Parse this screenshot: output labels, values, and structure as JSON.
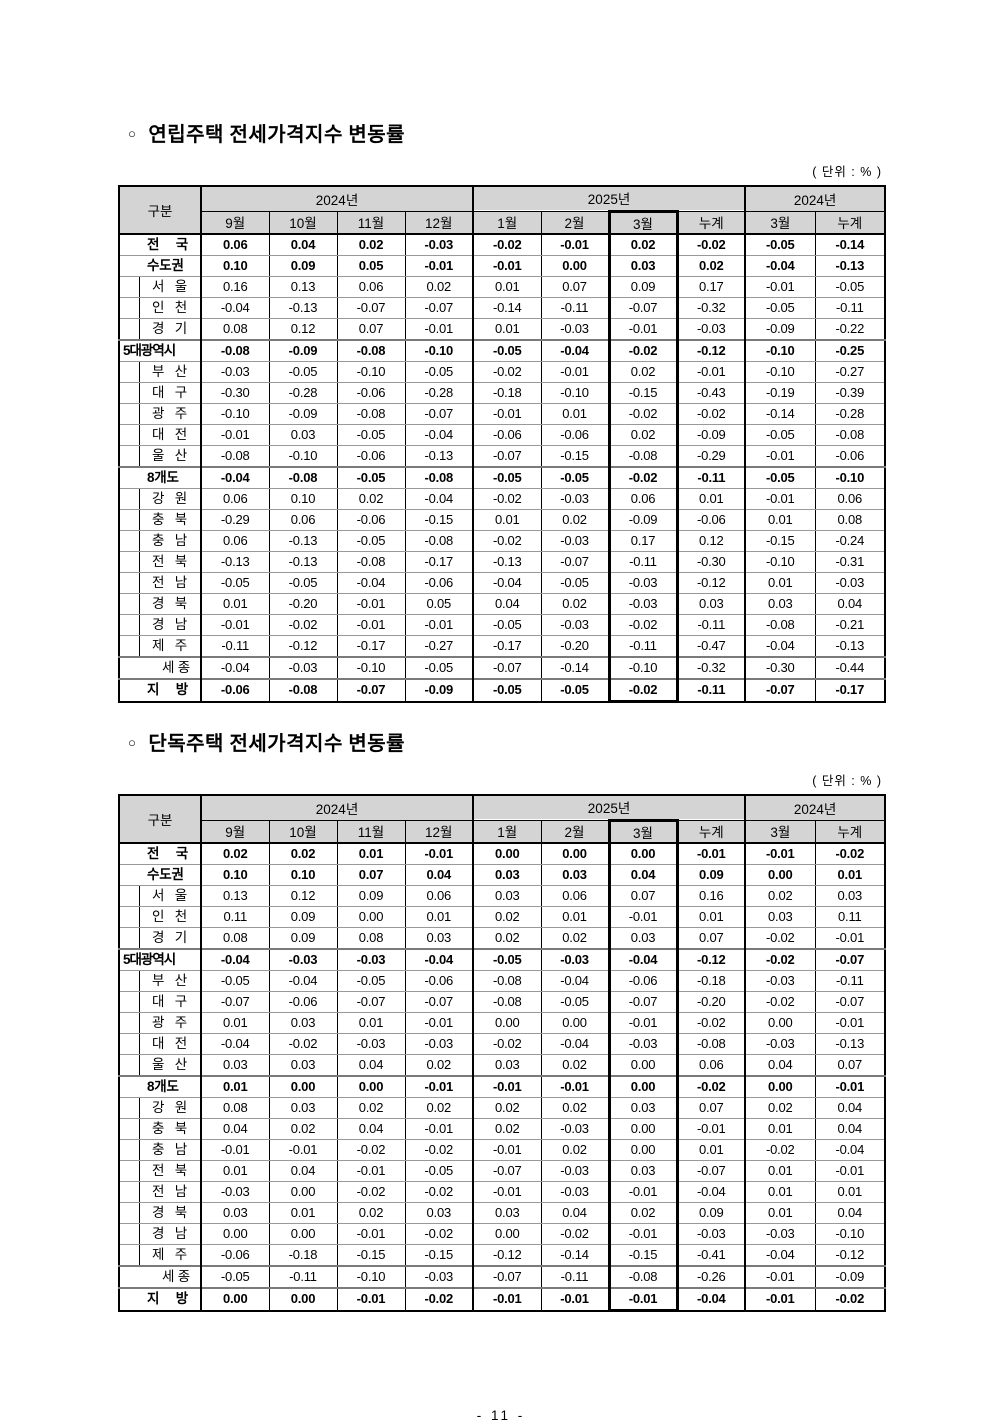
{
  "unit_label": "( 단위 :  % )",
  "page": {
    "footer": "- 11 -"
  },
  "tables": [
    {
      "title_marker": "○",
      "title": "연립주택 전세가격지수 변동률",
      "header": {
        "gubun": "구분",
        "groups": [
          {
            "label": "2024년"
          },
          {
            "label": "2025년"
          },
          {
            "label": "2024년"
          }
        ],
        "months": [
          "9월",
          "10월",
          "11월",
          "12월",
          "1월",
          "2월",
          "3월",
          "누계",
          "3월",
          "누계"
        ]
      },
      "rows": [
        {
          "label": "전 국",
          "bold": true,
          "indent": false,
          "sep": false,
          "values": [
            "0.06",
            "0.04",
            "0.02",
            "-0.03",
            "-0.02",
            "-0.01",
            "0.02",
            "-0.02",
            "-0.05",
            "-0.14"
          ]
        },
        {
          "label": "수도권",
          "bold": true,
          "indent": false,
          "sep": false,
          "values": [
            "0.10",
            "0.09",
            "0.05",
            "-0.01",
            "-0.01",
            "0.00",
            "0.03",
            "0.02",
            "-0.04",
            "-0.13"
          ]
        },
        {
          "label": "서 울",
          "bold": false,
          "indent": true,
          "sep": false,
          "values": [
            "0.16",
            "0.13",
            "0.06",
            "0.02",
            "0.01",
            "0.07",
            "0.09",
            "0.17",
            "-0.01",
            "-0.05"
          ]
        },
        {
          "label": "인 천",
          "bold": false,
          "indent": true,
          "sep": false,
          "values": [
            "-0.04",
            "-0.13",
            "-0.07",
            "-0.07",
            "-0.14",
            "-0.11",
            "-0.07",
            "-0.32",
            "-0.05",
            "-0.11"
          ]
        },
        {
          "label": "경 기",
          "bold": false,
          "indent": true,
          "sep": false,
          "values": [
            "0.08",
            "0.12",
            "0.07",
            "-0.01",
            "0.01",
            "-0.03",
            "-0.01",
            "-0.03",
            "-0.09",
            "-0.22"
          ]
        },
        {
          "label": "5대광역시",
          "bold": true,
          "indent": false,
          "sep": true,
          "values": [
            "-0.08",
            "-0.09",
            "-0.08",
            "-0.10",
            "-0.05",
            "-0.04",
            "-0.02",
            "-0.12",
            "-0.10",
            "-0.25"
          ]
        },
        {
          "label": "부 산",
          "bold": false,
          "indent": true,
          "sep": false,
          "values": [
            "-0.03",
            "-0.05",
            "-0.10",
            "-0.05",
            "-0.02",
            "-0.01",
            "0.02",
            "-0.01",
            "-0.10",
            "-0.27"
          ]
        },
        {
          "label": "대 구",
          "bold": false,
          "indent": true,
          "sep": false,
          "values": [
            "-0.30",
            "-0.28",
            "-0.06",
            "-0.28",
            "-0.18",
            "-0.10",
            "-0.15",
            "-0.43",
            "-0.19",
            "-0.39"
          ]
        },
        {
          "label": "광 주",
          "bold": false,
          "indent": true,
          "sep": false,
          "values": [
            "-0.10",
            "-0.09",
            "-0.08",
            "-0.07",
            "-0.01",
            "0.01",
            "-0.02",
            "-0.02",
            "-0.14",
            "-0.28"
          ]
        },
        {
          "label": "대 전",
          "bold": false,
          "indent": true,
          "sep": false,
          "values": [
            "-0.01",
            "0.03",
            "-0.05",
            "-0.04",
            "-0.06",
            "-0.06",
            "0.02",
            "-0.09",
            "-0.05",
            "-0.08"
          ]
        },
        {
          "label": "울 산",
          "bold": false,
          "indent": true,
          "sep": false,
          "values": [
            "-0.08",
            "-0.10",
            "-0.06",
            "-0.13",
            "-0.07",
            "-0.15",
            "-0.08",
            "-0.29",
            "-0.01",
            "-0.06"
          ]
        },
        {
          "label": "8개도",
          "bold": true,
          "indent": false,
          "sep": true,
          "values": [
            "-0.04",
            "-0.08",
            "-0.05",
            "-0.08",
            "-0.05",
            "-0.05",
            "-0.02",
            "-0.11",
            "-0.05",
            "-0.10"
          ]
        },
        {
          "label": "강 원",
          "bold": false,
          "indent": true,
          "sep": false,
          "values": [
            "0.06",
            "0.10",
            "0.02",
            "-0.04",
            "-0.02",
            "-0.03",
            "0.06",
            "0.01",
            "-0.01",
            "0.06"
          ]
        },
        {
          "label": "충 북",
          "bold": false,
          "indent": true,
          "sep": false,
          "values": [
            "-0.29",
            "0.06",
            "-0.06",
            "-0.15",
            "0.01",
            "0.02",
            "-0.09",
            "-0.06",
            "0.01",
            "0.08"
          ]
        },
        {
          "label": "충 남",
          "bold": false,
          "indent": true,
          "sep": false,
          "values": [
            "0.06",
            "-0.13",
            "-0.05",
            "-0.08",
            "-0.02",
            "-0.03",
            "0.17",
            "0.12",
            "-0.15",
            "-0.24"
          ]
        },
        {
          "label": "전 북",
          "bold": false,
          "indent": true,
          "sep": false,
          "values": [
            "-0.13",
            "-0.13",
            "-0.08",
            "-0.17",
            "-0.13",
            "-0.07",
            "-0.11",
            "-0.30",
            "-0.10",
            "-0.31"
          ]
        },
        {
          "label": "전 남",
          "bold": false,
          "indent": true,
          "sep": false,
          "values": [
            "-0.05",
            "-0.05",
            "-0.04",
            "-0.06",
            "-0.04",
            "-0.05",
            "-0.03",
            "-0.12",
            "0.01",
            "-0.03"
          ]
        },
        {
          "label": "경 북",
          "bold": false,
          "indent": true,
          "sep": false,
          "values": [
            "0.01",
            "-0.20",
            "-0.01",
            "0.05",
            "0.04",
            "0.02",
            "-0.03",
            "0.03",
            "0.03",
            "0.04"
          ]
        },
        {
          "label": "경 남",
          "bold": false,
          "indent": true,
          "sep": false,
          "values": [
            "-0.01",
            "-0.02",
            "-0.01",
            "-0.01",
            "-0.05",
            "-0.03",
            "-0.02",
            "-0.11",
            "-0.08",
            "-0.21"
          ]
        },
        {
          "label": "제 주",
          "bold": false,
          "indent": true,
          "sep": false,
          "values": [
            "-0.11",
            "-0.12",
            "-0.17",
            "-0.27",
            "-0.17",
            "-0.20",
            "-0.11",
            "-0.47",
            "-0.04",
            "-0.13"
          ]
        },
        {
          "label": "세 종",
          "bold": false,
          "indent": false,
          "sep": true,
          "align": "right",
          "values": [
            "-0.04",
            "-0.03",
            "-0.10",
            "-0.05",
            "-0.07",
            "-0.14",
            "-0.10",
            "-0.32",
            "-0.30",
            "-0.44"
          ]
        },
        {
          "label": "지 방",
          "bold": true,
          "indent": false,
          "sep": true,
          "values": [
            "-0.06",
            "-0.08",
            "-0.07",
            "-0.09",
            "-0.05",
            "-0.05",
            "-0.02",
            "-0.11",
            "-0.07",
            "-0.17"
          ]
        }
      ]
    },
    {
      "title_marker": "○",
      "title": "단독주택 전세가격지수 변동률",
      "header": {
        "gubun": "구분",
        "groups": [
          {
            "label": "2024년"
          },
          {
            "label": "2025년"
          },
          {
            "label": "2024년"
          }
        ],
        "months": [
          "9월",
          "10월",
          "11월",
          "12월",
          "1월",
          "2월",
          "3월",
          "누계",
          "3월",
          "누계"
        ]
      },
      "rows": [
        {
          "label": "전 국",
          "bold": true,
          "indent": false,
          "sep": false,
          "values": [
            "0.02",
            "0.02",
            "0.01",
            "-0.01",
            "0.00",
            "0.00",
            "0.00",
            "-0.01",
            "-0.01",
            "-0.02"
          ]
        },
        {
          "label": "수도권",
          "bold": true,
          "indent": false,
          "sep": false,
          "values": [
            "0.10",
            "0.10",
            "0.07",
            "0.04",
            "0.03",
            "0.03",
            "0.04",
            "0.09",
            "0.00",
            "0.01"
          ]
        },
        {
          "label": "서 울",
          "bold": false,
          "indent": true,
          "sep": false,
          "values": [
            "0.13",
            "0.12",
            "0.09",
            "0.06",
            "0.03",
            "0.06",
            "0.07",
            "0.16",
            "0.02",
            "0.03"
          ]
        },
        {
          "label": "인 천",
          "bold": false,
          "indent": true,
          "sep": false,
          "values": [
            "0.11",
            "0.09",
            "0.00",
            "0.01",
            "0.02",
            "0.01",
            "-0.01",
            "0.01",
            "0.03",
            "0.11"
          ]
        },
        {
          "label": "경 기",
          "bold": false,
          "indent": true,
          "sep": false,
          "values": [
            "0.08",
            "0.09",
            "0.08",
            "0.03",
            "0.02",
            "0.02",
            "0.03",
            "0.07",
            "-0.02",
            "-0.01"
          ]
        },
        {
          "label": "5대광역시",
          "bold": true,
          "indent": false,
          "sep": true,
          "values": [
            "-0.04",
            "-0.03",
            "-0.03",
            "-0.04",
            "-0.05",
            "-0.03",
            "-0.04",
            "-0.12",
            "-0.02",
            "-0.07"
          ]
        },
        {
          "label": "부 산",
          "bold": false,
          "indent": true,
          "sep": false,
          "values": [
            "-0.05",
            "-0.04",
            "-0.05",
            "-0.06",
            "-0.08",
            "-0.04",
            "-0.06",
            "-0.18",
            "-0.03",
            "-0.11"
          ]
        },
        {
          "label": "대 구",
          "bold": false,
          "indent": true,
          "sep": false,
          "values": [
            "-0.07",
            "-0.06",
            "-0.07",
            "-0.07",
            "-0.08",
            "-0.05",
            "-0.07",
            "-0.20",
            "-0.02",
            "-0.07"
          ]
        },
        {
          "label": "광 주",
          "bold": false,
          "indent": true,
          "sep": false,
          "values": [
            "0.01",
            "0.03",
            "0.01",
            "-0.01",
            "0.00",
            "0.00",
            "-0.01",
            "-0.02",
            "0.00",
            "-0.01"
          ]
        },
        {
          "label": "대 전",
          "bold": false,
          "indent": true,
          "sep": false,
          "values": [
            "-0.04",
            "-0.02",
            "-0.03",
            "-0.03",
            "-0.02",
            "-0.04",
            "-0.03",
            "-0.08",
            "-0.03",
            "-0.13"
          ]
        },
        {
          "label": "울 산",
          "bold": false,
          "indent": true,
          "sep": false,
          "values": [
            "0.03",
            "0.03",
            "0.04",
            "0.02",
            "0.03",
            "0.02",
            "0.00",
            "0.06",
            "0.04",
            "0.07"
          ]
        },
        {
          "label": "8개도",
          "bold": true,
          "indent": false,
          "sep": true,
          "values": [
            "0.01",
            "0.00",
            "0.00",
            "-0.01",
            "-0.01",
            "-0.01",
            "0.00",
            "-0.02",
            "0.00",
            "-0.01"
          ]
        },
        {
          "label": "강 원",
          "bold": false,
          "indent": true,
          "sep": false,
          "values": [
            "0.08",
            "0.03",
            "0.02",
            "0.02",
            "0.02",
            "0.02",
            "0.03",
            "0.07",
            "0.02",
            "0.04"
          ]
        },
        {
          "label": "충 북",
          "bold": false,
          "indent": true,
          "sep": false,
          "values": [
            "0.04",
            "0.02",
            "0.04",
            "-0.01",
            "0.02",
            "-0.03",
            "0.00",
            "-0.01",
            "0.01",
            "0.04"
          ]
        },
        {
          "label": "충 남",
          "bold": false,
          "indent": true,
          "sep": false,
          "values": [
            "-0.01",
            "-0.01",
            "-0.02",
            "-0.02",
            "-0.01",
            "0.02",
            "0.00",
            "0.01",
            "-0.02",
            "-0.04"
          ]
        },
        {
          "label": "전 북",
          "bold": false,
          "indent": true,
          "sep": false,
          "values": [
            "0.01",
            "0.04",
            "-0.01",
            "-0.05",
            "-0.07",
            "-0.03",
            "0.03",
            "-0.07",
            "0.01",
            "-0.01"
          ]
        },
        {
          "label": "전 남",
          "bold": false,
          "indent": true,
          "sep": false,
          "values": [
            "-0.03",
            "0.00",
            "-0.02",
            "-0.02",
            "-0.01",
            "-0.03",
            "-0.01",
            "-0.04",
            "0.01",
            "0.01"
          ]
        },
        {
          "label": "경 북",
          "bold": false,
          "indent": true,
          "sep": false,
          "values": [
            "0.03",
            "0.01",
            "0.02",
            "0.03",
            "0.03",
            "0.04",
            "0.02",
            "0.09",
            "0.01",
            "0.04"
          ]
        },
        {
          "label": "경 남",
          "bold": false,
          "indent": true,
          "sep": false,
          "values": [
            "0.00",
            "0.00",
            "-0.01",
            "-0.02",
            "0.00",
            "-0.02",
            "-0.01",
            "-0.03",
            "-0.03",
            "-0.10"
          ]
        },
        {
          "label": "제 주",
          "bold": false,
          "indent": true,
          "sep": false,
          "values": [
            "-0.06",
            "-0.18",
            "-0.15",
            "-0.15",
            "-0.12",
            "-0.14",
            "-0.15",
            "-0.41",
            "-0.04",
            "-0.12"
          ]
        },
        {
          "label": "세 종",
          "bold": false,
          "indent": false,
          "sep": true,
          "align": "right",
          "values": [
            "-0.05",
            "-0.11",
            "-0.10",
            "-0.03",
            "-0.07",
            "-0.11",
            "-0.08",
            "-0.26",
            "-0.01",
            "-0.09"
          ]
        },
        {
          "label": "지 방",
          "bold": true,
          "indent": false,
          "sep": true,
          "values": [
            "0.00",
            "0.00",
            "-0.01",
            "-0.02",
            "-0.01",
            "-0.01",
            "-0.01",
            "-0.04",
            "-0.01",
            "-0.02"
          ]
        }
      ]
    }
  ]
}
